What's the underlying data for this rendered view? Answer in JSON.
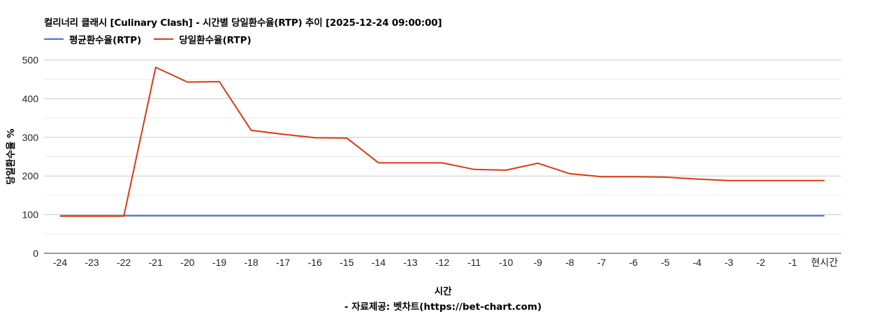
{
  "title": "컬리너리 클래시 [Culinary Clash] - 시간별 당일환수율(RTP) 추이 [2025-12-24 09:00:00]",
  "legend": [
    {
      "label": "평균환수율(RTP)",
      "color": "#3d6fd8"
    },
    {
      "label": "당일환수율(RTP)",
      "color": "#dc3912"
    }
  ],
  "x_axis_title": "시간",
  "y_axis_title": "당일환수율 %",
  "source": "- 자료제공: 벳차트(https://bet-chart.com)",
  "chart_data": {
    "type": "line",
    "title": "컬리너리 클래시 [Culinary Clash] - 시간별 당일환수율(RTP) 추이 [2025-12-24 09:00:00]",
    "xlabel": "시간",
    "ylabel": "당일환수율 %",
    "ylim": [
      0,
      500
    ],
    "yticks": [
      0,
      100,
      200,
      300,
      400,
      500
    ],
    "grid": true,
    "legend_position": "top-left",
    "categories": [
      "-24",
      "-23",
      "-22",
      "-21",
      "-20",
      "-19",
      "-18",
      "-17",
      "-16",
      "-15",
      "-14",
      "-13",
      "-12",
      "-11",
      "-10",
      "-9",
      "-8",
      "-7",
      "-6",
      "-5",
      "-4",
      "-3",
      "-2",
      "-1",
      "현시간"
    ],
    "series": [
      {
        "name": "평균환수율(RTP)",
        "color": "#3d6fd8",
        "values": [
          97,
          97,
          97,
          97,
          97,
          97,
          97,
          97,
          97,
          97,
          97,
          97,
          97,
          97,
          97,
          97,
          97,
          97,
          97,
          97,
          97,
          97,
          97,
          97,
          97
        ]
      },
      {
        "name": "당일환수율(RTP)",
        "color": "#dc3912",
        "values": [
          96,
          96,
          96,
          481,
          443,
          444,
          318,
          308,
          299,
          298,
          234,
          234,
          234,
          217,
          215,
          233,
          206,
          198,
          198,
          197,
          192,
          188,
          188,
          188,
          188
        ]
      }
    ]
  }
}
